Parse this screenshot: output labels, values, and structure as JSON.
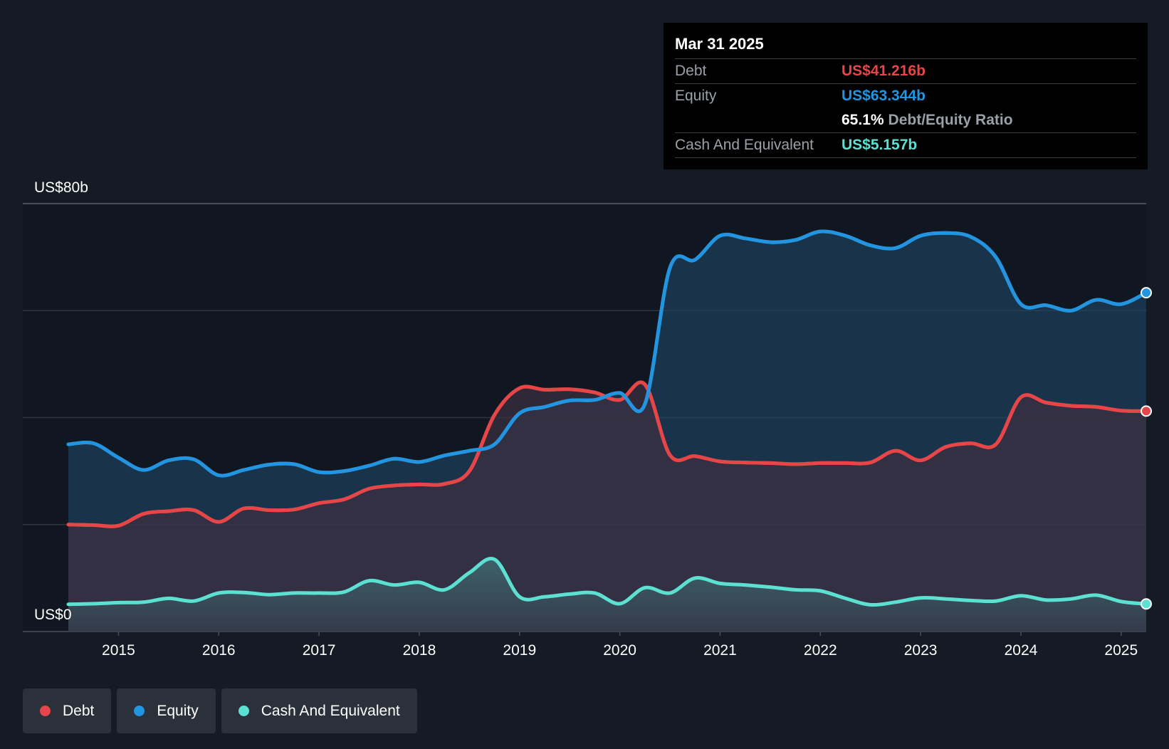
{
  "chart_data": {
    "type": "area",
    "y_unit_label_top": "US$80b",
    "y_unit_label_bottom": "US$0",
    "ylim": [
      0,
      80
    ],
    "xlim": [
      2014.5,
      2025.25
    ],
    "x_ticks": [
      "2015",
      "2016",
      "2017",
      "2018",
      "2019",
      "2020",
      "2021",
      "2022",
      "2023",
      "2024",
      "2025"
    ],
    "grid": true,
    "legend_placement": "bottom-left",
    "series": [
      {
        "name": "Equity",
        "color": "#2394df",
        "points": [
          [
            2014.5,
            35.0
          ],
          [
            2014.75,
            35.2
          ],
          [
            2015.0,
            32.5
          ],
          [
            2015.25,
            30.2
          ],
          [
            2015.5,
            32.0
          ],
          [
            2015.75,
            32.2
          ],
          [
            2016.0,
            29.2
          ],
          [
            2016.25,
            30.2
          ],
          [
            2016.5,
            31.2
          ],
          [
            2016.75,
            31.3
          ],
          [
            2017.0,
            29.8
          ],
          [
            2017.25,
            30.0
          ],
          [
            2017.5,
            31.0
          ],
          [
            2017.75,
            32.3
          ],
          [
            2018.0,
            31.7
          ],
          [
            2018.25,
            32.9
          ],
          [
            2018.5,
            33.8
          ],
          [
            2018.75,
            35.0
          ],
          [
            2019.0,
            40.8
          ],
          [
            2019.25,
            42.0
          ],
          [
            2019.5,
            43.2
          ],
          [
            2019.75,
            43.3
          ],
          [
            2020.0,
            44.6
          ],
          [
            2020.25,
            42.5
          ],
          [
            2020.5,
            68.0
          ],
          [
            2020.75,
            69.5
          ],
          [
            2021.0,
            74.0
          ],
          [
            2021.25,
            73.5
          ],
          [
            2021.5,
            72.8
          ],
          [
            2021.75,
            73.2
          ],
          [
            2022.0,
            74.8
          ],
          [
            2022.25,
            74.0
          ],
          [
            2022.5,
            72.2
          ],
          [
            2022.75,
            71.7
          ],
          [
            2023.0,
            74.0
          ],
          [
            2023.25,
            74.5
          ],
          [
            2023.5,
            73.8
          ],
          [
            2023.75,
            70.0
          ],
          [
            2024.0,
            61.2
          ],
          [
            2024.25,
            61.0
          ],
          [
            2024.5,
            60.0
          ],
          [
            2024.75,
            62.0
          ],
          [
            2025.0,
            61.2
          ],
          [
            2025.25,
            63.344
          ]
        ]
      },
      {
        "name": "Debt",
        "color": "#e64649",
        "points": [
          [
            2014.5,
            20.0
          ],
          [
            2014.75,
            19.9
          ],
          [
            2015.0,
            19.8
          ],
          [
            2015.25,
            22.0
          ],
          [
            2015.5,
            22.5
          ],
          [
            2015.75,
            22.7
          ],
          [
            2016.0,
            20.5
          ],
          [
            2016.25,
            23.0
          ],
          [
            2016.5,
            22.7
          ],
          [
            2016.75,
            22.8
          ],
          [
            2017.0,
            24.0
          ],
          [
            2017.25,
            24.7
          ],
          [
            2017.5,
            26.7
          ],
          [
            2017.75,
            27.3
          ],
          [
            2018.0,
            27.5
          ],
          [
            2018.25,
            27.6
          ],
          [
            2018.5,
            30.0
          ],
          [
            2018.75,
            40.5
          ],
          [
            2019.0,
            45.5
          ],
          [
            2019.25,
            45.2
          ],
          [
            2019.5,
            45.3
          ],
          [
            2019.75,
            44.7
          ],
          [
            2020.0,
            43.3
          ],
          [
            2020.25,
            46.2
          ],
          [
            2020.5,
            33.0
          ],
          [
            2020.75,
            32.8
          ],
          [
            2021.0,
            31.8
          ],
          [
            2021.25,
            31.6
          ],
          [
            2021.5,
            31.5
          ],
          [
            2021.75,
            31.3
          ],
          [
            2022.0,
            31.5
          ],
          [
            2022.25,
            31.5
          ],
          [
            2022.5,
            31.6
          ],
          [
            2022.75,
            33.8
          ],
          [
            2023.0,
            32.0
          ],
          [
            2023.25,
            34.5
          ],
          [
            2023.5,
            35.2
          ],
          [
            2023.75,
            35.0
          ],
          [
            2024.0,
            43.8
          ],
          [
            2024.25,
            42.8
          ],
          [
            2024.5,
            42.2
          ],
          [
            2024.75,
            42.0
          ],
          [
            2025.0,
            41.3
          ],
          [
            2025.25,
            41.216
          ]
        ]
      },
      {
        "name": "Cash And Equivalent",
        "color": "#5ce0d2",
        "points": [
          [
            2014.5,
            5.1
          ],
          [
            2014.75,
            5.2
          ],
          [
            2015.0,
            5.4
          ],
          [
            2015.25,
            5.5
          ],
          [
            2015.5,
            6.2
          ],
          [
            2015.75,
            5.7
          ],
          [
            2016.0,
            7.2
          ],
          [
            2016.25,
            7.3
          ],
          [
            2016.5,
            6.9
          ],
          [
            2016.75,
            7.2
          ],
          [
            2017.0,
            7.2
          ],
          [
            2017.25,
            7.4
          ],
          [
            2017.5,
            9.5
          ],
          [
            2017.75,
            8.7
          ],
          [
            2018.0,
            9.2
          ],
          [
            2018.25,
            7.8
          ],
          [
            2018.5,
            11.0
          ],
          [
            2018.75,
            13.5
          ],
          [
            2019.0,
            6.5
          ],
          [
            2019.25,
            6.5
          ],
          [
            2019.5,
            7.0
          ],
          [
            2019.75,
            7.2
          ],
          [
            2020.0,
            5.2
          ],
          [
            2020.25,
            8.2
          ],
          [
            2020.5,
            7.2
          ],
          [
            2020.75,
            10.0
          ],
          [
            2021.0,
            9.0
          ],
          [
            2021.25,
            8.7
          ],
          [
            2021.5,
            8.3
          ],
          [
            2021.75,
            7.8
          ],
          [
            2022.0,
            7.6
          ],
          [
            2022.25,
            6.2
          ],
          [
            2022.5,
            5.0
          ],
          [
            2022.75,
            5.5
          ],
          [
            2023.0,
            6.3
          ],
          [
            2023.25,
            6.1
          ],
          [
            2023.5,
            5.8
          ],
          [
            2023.75,
            5.7
          ],
          [
            2024.0,
            6.7
          ],
          [
            2024.25,
            5.9
          ],
          [
            2024.5,
            6.1
          ],
          [
            2024.75,
            6.8
          ],
          [
            2025.0,
            5.6
          ],
          [
            2025.25,
            5.157
          ]
        ]
      }
    ]
  },
  "tooltip": {
    "date": "Mar 31 2025",
    "debt_label": "Debt",
    "debt_value": "US$41.216b",
    "equity_label": "Equity",
    "equity_value": "US$63.344b",
    "ratio_pct": "65.1%",
    "ratio_label": "Debt/Equity Ratio",
    "cash_label": "Cash And Equivalent",
    "cash_value": "US$5.157b"
  },
  "legend": {
    "debt": "Debt",
    "equity": "Equity",
    "cash": "Cash And Equivalent"
  },
  "colors": {
    "debt": "#e64649",
    "equity": "#2394df",
    "cash": "#5ce0d2",
    "background": "#151b24"
  }
}
